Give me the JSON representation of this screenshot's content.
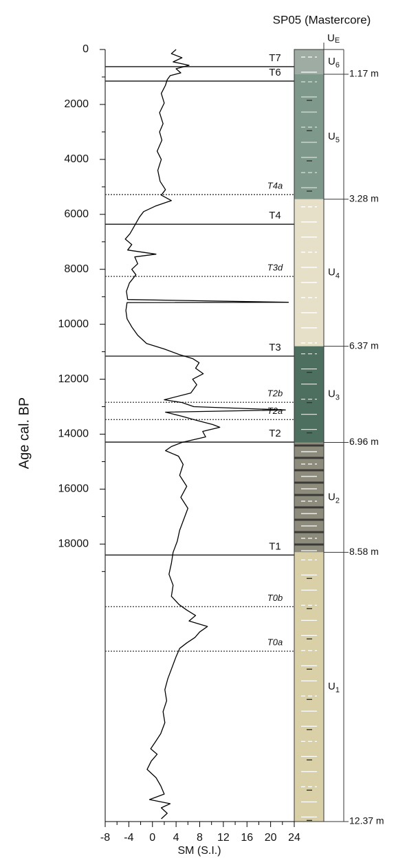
{
  "chart_data": {
    "type": "line",
    "title": "SP05 (Mastercore)",
    "y_label": "Age cal. BP",
    "x_label": "SM (S.I.)",
    "y_inverted": true,
    "ylim": [
      0,
      28100
    ],
    "yticks": [
      0,
      2000,
      4000,
      6000,
      8000,
      10000,
      12000,
      14000,
      16000,
      18000
    ],
    "y_minor_ticks": [
      1000,
      3000,
      5000,
      7000,
      9000,
      11000,
      13000,
      15000,
      17000,
      19000
    ],
    "xlim": [
      -8,
      24
    ],
    "xticks": [
      -8,
      -4,
      0,
      4,
      8,
      12,
      16,
      20,
      24
    ],
    "x_minor_ticks": [
      -6,
      -2,
      2,
      6,
      10,
      14,
      18,
      22
    ],
    "series": [
      {
        "name": "SM",
        "color": "#000000",
        "x": [
          0,
          150,
          300,
          450,
          575,
          700,
          850,
          950,
          1100,
          1300,
          1600,
          1950,
          2300,
          2700,
          3000,
          3300,
          3700,
          4000,
          4400,
          4800,
          5100,
          5300,
          5500,
          5700,
          5900,
          6100,
          6400,
          6700,
          6900,
          7100,
          7300,
          7450,
          7550,
          7800,
          8000,
          8200,
          8500,
          8800,
          9100,
          9200,
          9210,
          9500,
          9800,
          10100,
          10400,
          10700,
          10900,
          11100,
          11250,
          11400,
          11600,
          11800,
          12000,
          12200,
          12500,
          12750,
          12850,
          13000,
          13120,
          13200,
          13350,
          13500,
          13650,
          13750,
          13900,
          14100,
          14300,
          14450,
          14600,
          14800,
          15100,
          15500,
          15900,
          16300,
          16700,
          17100,
          17500,
          17900,
          18300,
          18700,
          19100,
          19500,
          19900,
          20200,
          20400,
          20600,
          20800,
          21000,
          21200,
          21400,
          21600,
          21800,
          22100,
          22500,
          22900,
          23300,
          23700,
          24100,
          24500,
          24900,
          25200,
          25450,
          25650,
          25900,
          26200,
          26500,
          26800,
          27100,
          27300,
          27450,
          27600,
          27800,
          28000
        ],
        "values": [
          4,
          3.2,
          5,
          3.5,
          6.2,
          4,
          4.8,
          3,
          2.5,
          2.2,
          1.5,
          2,
          1.2,
          1.8,
          1.2,
          1.6,
          0.8,
          1.5,
          0.9,
          1.3,
          2.2,
          1.5,
          3.2,
          0.5,
          -1.5,
          -2.2,
          -3,
          -3.8,
          -4.6,
          -3.5,
          -4.2,
          0.6,
          -3,
          -2.5,
          -3.5,
          -2.8,
          -3.9,
          -4.4,
          -4.2,
          23,
          -4.3,
          -4.5,
          -4.3,
          -3.5,
          -2.5,
          -1,
          2,
          4.5,
          6.8,
          7.9,
          7.3,
          8.6,
          6.8,
          7.5,
          6.5,
          2,
          5,
          7,
          22.5,
          2.2,
          5,
          7.5,
          10.2,
          11.4,
          8.5,
          9,
          5,
          3.2,
          2.2,
          4.4,
          5.2,
          4.6,
          5.8,
          4.8,
          6,
          5.3,
          4.6,
          4.2,
          3.5,
          3.2,
          2.8,
          3.5,
          3.2,
          4.5,
          5.8,
          7.3,
          6.2,
          9.3,
          8,
          7.2,
          5.8,
          4.6,
          4,
          3.3,
          2.6,
          2.1,
          2.4,
          1.8,
          2.1,
          1.4,
          0.5,
          -0.3,
          0.8,
          -0.2,
          -0.9,
          0.6,
          1.4,
          2,
          -0.5,
          3,
          1.5,
          2.5,
          1.5
        ]
      }
    ],
    "boundaries": [
      {
        "label": "T7",
        "age": 625,
        "style": "solid"
      },
      {
        "label": "T6",
        "age": 1150,
        "style": "solid"
      },
      {
        "label": "T4a",
        "age": 5280,
        "style": "dotted"
      },
      {
        "label": "T4",
        "age": 6360,
        "style": "solid"
      },
      {
        "label": "T3d",
        "age": 8260,
        "style": "dotted"
      },
      {
        "label": "T3",
        "age": 11160,
        "style": "solid"
      },
      {
        "label": "T2b",
        "age": 12840,
        "style": "dotted"
      },
      {
        "label": "T2a",
        "age": 13470,
        "style": "dotted"
      },
      {
        "label": "T2",
        "age": 14290,
        "style": "solid"
      },
      {
        "label": "T1",
        "age": 18400,
        "style": "solid"
      },
      {
        "label": "T0b",
        "age": 20280,
        "style": "dotted"
      },
      {
        "label": "T0a",
        "age": 21900,
        "style": "dotted"
      }
    ],
    "top_unit": {
      "letter": "U",
      "subscript": "E"
    },
    "units": [
      {
        "letter": "U",
        "subscript": "6",
        "age_top": 0,
        "age_bottom": 900,
        "color": "#9eaca4",
        "depth_label": "1.17 m"
      },
      {
        "letter": "U",
        "subscript": "5",
        "age_top": 900,
        "age_bottom": 5450,
        "color": "#7f988c",
        "depth_label": "3.28 m"
      },
      {
        "letter": "U",
        "subscript": "4",
        "age_top": 5450,
        "age_bottom": 10800,
        "color": "#e7e0c8",
        "depth_label": "6.37 m"
      },
      {
        "letter": "U",
        "subscript": "3",
        "age_top": 10800,
        "age_bottom": 14300,
        "color": "#4d6f5f",
        "depth_label": "6.96 m"
      },
      {
        "letter": "U",
        "subscript": "2",
        "age_top": 14300,
        "age_bottom": 18300,
        "color": "#8d8b7c",
        "depth_label": "8.58 m"
      },
      {
        "letter": "U",
        "subscript": "1",
        "age_top": 18300,
        "age_bottom": 28100,
        "color": "#d9d0a8",
        "depth_label": "12.37 m"
      }
    ]
  }
}
